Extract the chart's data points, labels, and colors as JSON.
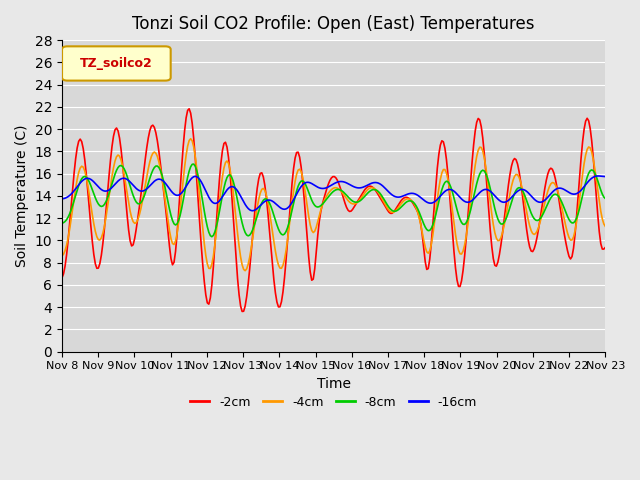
{
  "title": "Tonzi Soil CO2 Profile: Open (East) Temperatures",
  "xlabel": "Time",
  "ylabel": "Soil Temperature (C)",
  "ylim": [
    0,
    28
  ],
  "yticks": [
    0,
    2,
    4,
    6,
    8,
    10,
    12,
    14,
    16,
    18,
    20,
    22,
    24,
    26,
    28
  ],
  "legend_label": "TZ_soilco2",
  "series_labels": [
    "-2cm",
    "-4cm",
    "-8cm",
    "-16cm"
  ],
  "series_colors": [
    "#ff0000",
    "#ff9900",
    "#00cc00",
    "#0000ff"
  ],
  "bg_color": "#e8e8e8",
  "plot_bg_color": "#d8d8d8",
  "n_days": 15,
  "start_day": 8,
  "x_tick_labels": [
    "Nov 8",
    "Nov 9",
    "Nov 10",
    "Nov 11",
    "Nov 12",
    "Nov 13",
    "Nov 14",
    "Nov 15",
    "Nov 16",
    "Nov 17",
    "Nov 18",
    "Nov 19",
    "Nov 20",
    "Nov 21",
    "Nov 22",
    "Nov 23"
  ]
}
